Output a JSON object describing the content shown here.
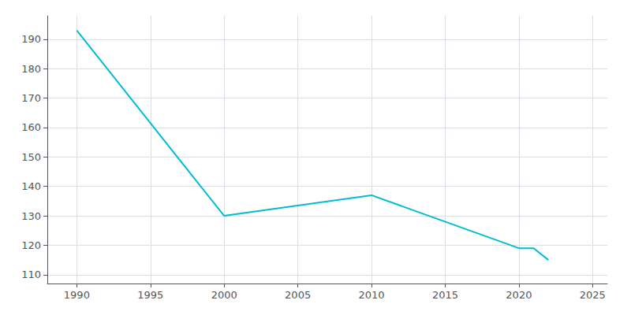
{
  "chart_data": {
    "type": "line",
    "x": [
      1990,
      2000,
      2010,
      2020,
      2021,
      2022
    ],
    "values": [
      193,
      130,
      137,
      119,
      119,
      115
    ],
    "color": "#00BCD4",
    "xlim": [
      1988,
      2026
    ],
    "ylim": [
      107,
      198
    ],
    "xticks": [
      1990,
      1995,
      2000,
      2005,
      2010,
      2015,
      2020,
      2025
    ],
    "yticks": [
      110,
      120,
      130,
      140,
      150,
      160,
      170,
      180,
      190
    ],
    "grid": true
  }
}
